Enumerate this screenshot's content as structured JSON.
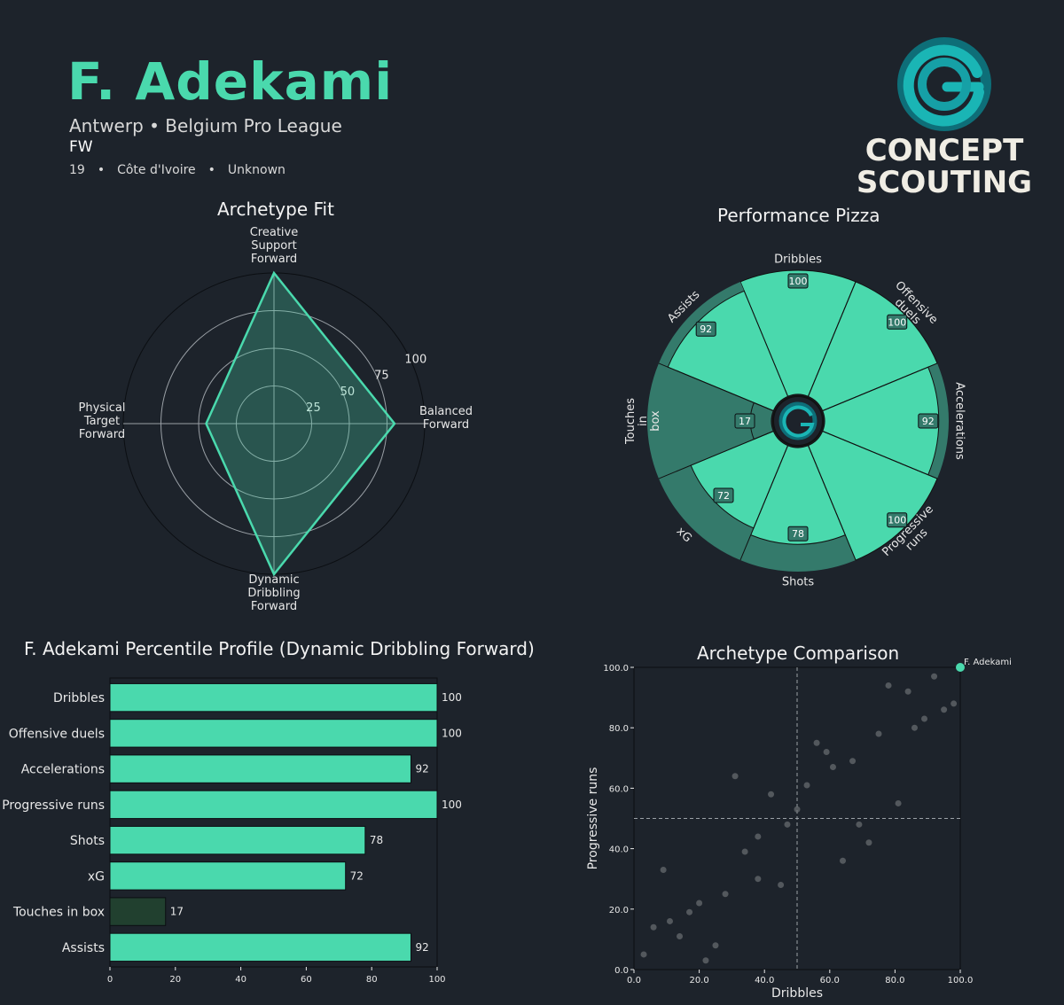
{
  "header": {
    "name": "F. Adekami",
    "club_league": "Antwerp • Belgium Pro League",
    "position": "FW",
    "age": "19",
    "nationality": "Côte d'Ivoire",
    "foot": "Unknown",
    "separator": "•"
  },
  "brand": {
    "line1": "CONCEPT",
    "line2": "SCOUTING",
    "logo_icon": "concept-scouting-g-logo-icon",
    "logo_colors": [
      "#1ab5b5",
      "#0e6e78"
    ]
  },
  "colors": {
    "background": "#1d232b",
    "accent": "#4ad9ad",
    "accent_dark": "#347a6b",
    "bar_low": "#21402f",
    "grid": "#9aa0a6"
  },
  "chart_data": [
    {
      "type": "radar",
      "title": "Archetype Fit",
      "axes": [
        "Creative Support Forward",
        "Balanced Forward",
        "Dynamic Dribbling Forward",
        "Physical Target Forward"
      ],
      "values": [
        100,
        80,
        100,
        45
      ],
      "rmax": 100,
      "ticks": [
        "25",
        "50",
        "75",
        "100"
      ],
      "color": "#4ad9ad"
    },
    {
      "type": "pizza",
      "title": "Performance Pizza",
      "center_icon": "concept-scouting-g-logo-icon",
      "categories": [
        "Dribbles",
        "Offensive duels",
        "Accelerations",
        "Progressive runs",
        "Shots",
        "xG",
        "Touches in box",
        "Assists"
      ],
      "values": [
        100,
        100,
        92,
        100,
        78,
        72,
        17,
        92
      ],
      "max": 100
    },
    {
      "type": "bar",
      "orientation": "horizontal",
      "title": "F. Adekami Percentile Profile (Dynamic Dribbling Forward)",
      "categories": [
        "Dribbles",
        "Offensive duels",
        "Accelerations",
        "Progressive runs",
        "Shots",
        "xG",
        "Touches in box",
        "Assists"
      ],
      "values": [
        100,
        100,
        92,
        100,
        78,
        72,
        17,
        92
      ],
      "xlim": [
        0,
        100
      ],
      "xticks": [
        "0",
        "20",
        "40",
        "60",
        "80",
        "100"
      ],
      "low_threshold": 20
    },
    {
      "type": "scatter",
      "title": "Archetype Comparison",
      "xlabel": "Dribbles",
      "ylabel": "Progressive runs",
      "xlim": [
        0,
        100
      ],
      "ylim": [
        0,
        100
      ],
      "xticks": [
        "0.0",
        "20.0",
        "40.0",
        "60.0",
        "80.0",
        "100.0"
      ],
      "yticks": [
        "0.0",
        "20.0",
        "40.0",
        "60.0",
        "80.0",
        "100.0"
      ],
      "reference_x": 50,
      "reference_y": 50,
      "highlight": {
        "label": "F. Adekami",
        "x": 100,
        "y": 100
      },
      "points": [
        [
          3,
          5
        ],
        [
          6,
          14
        ],
        [
          9,
          33
        ],
        [
          11,
          16
        ],
        [
          14,
          11
        ],
        [
          17,
          19
        ],
        [
          20,
          22
        ],
        [
          22,
          3
        ],
        [
          25,
          8
        ],
        [
          28,
          25
        ],
        [
          31,
          64
        ],
        [
          34,
          39
        ],
        [
          38,
          44
        ],
        [
          38,
          30
        ],
        [
          42,
          58
        ],
        [
          45,
          28
        ],
        [
          47,
          48
        ],
        [
          50,
          53
        ],
        [
          53,
          61
        ],
        [
          56,
          75
        ],
        [
          59,
          72
        ],
        [
          61,
          67
        ],
        [
          64,
          36
        ],
        [
          67,
          69
        ],
        [
          69,
          48
        ],
        [
          72,
          42
        ],
        [
          75,
          78
        ],
        [
          78,
          94
        ],
        [
          81,
          55
        ],
        [
          84,
          92
        ],
        [
          86,
          80
        ],
        [
          89,
          83
        ],
        [
          92,
          97
        ],
        [
          95,
          86
        ],
        [
          98,
          88
        ]
      ]
    }
  ]
}
